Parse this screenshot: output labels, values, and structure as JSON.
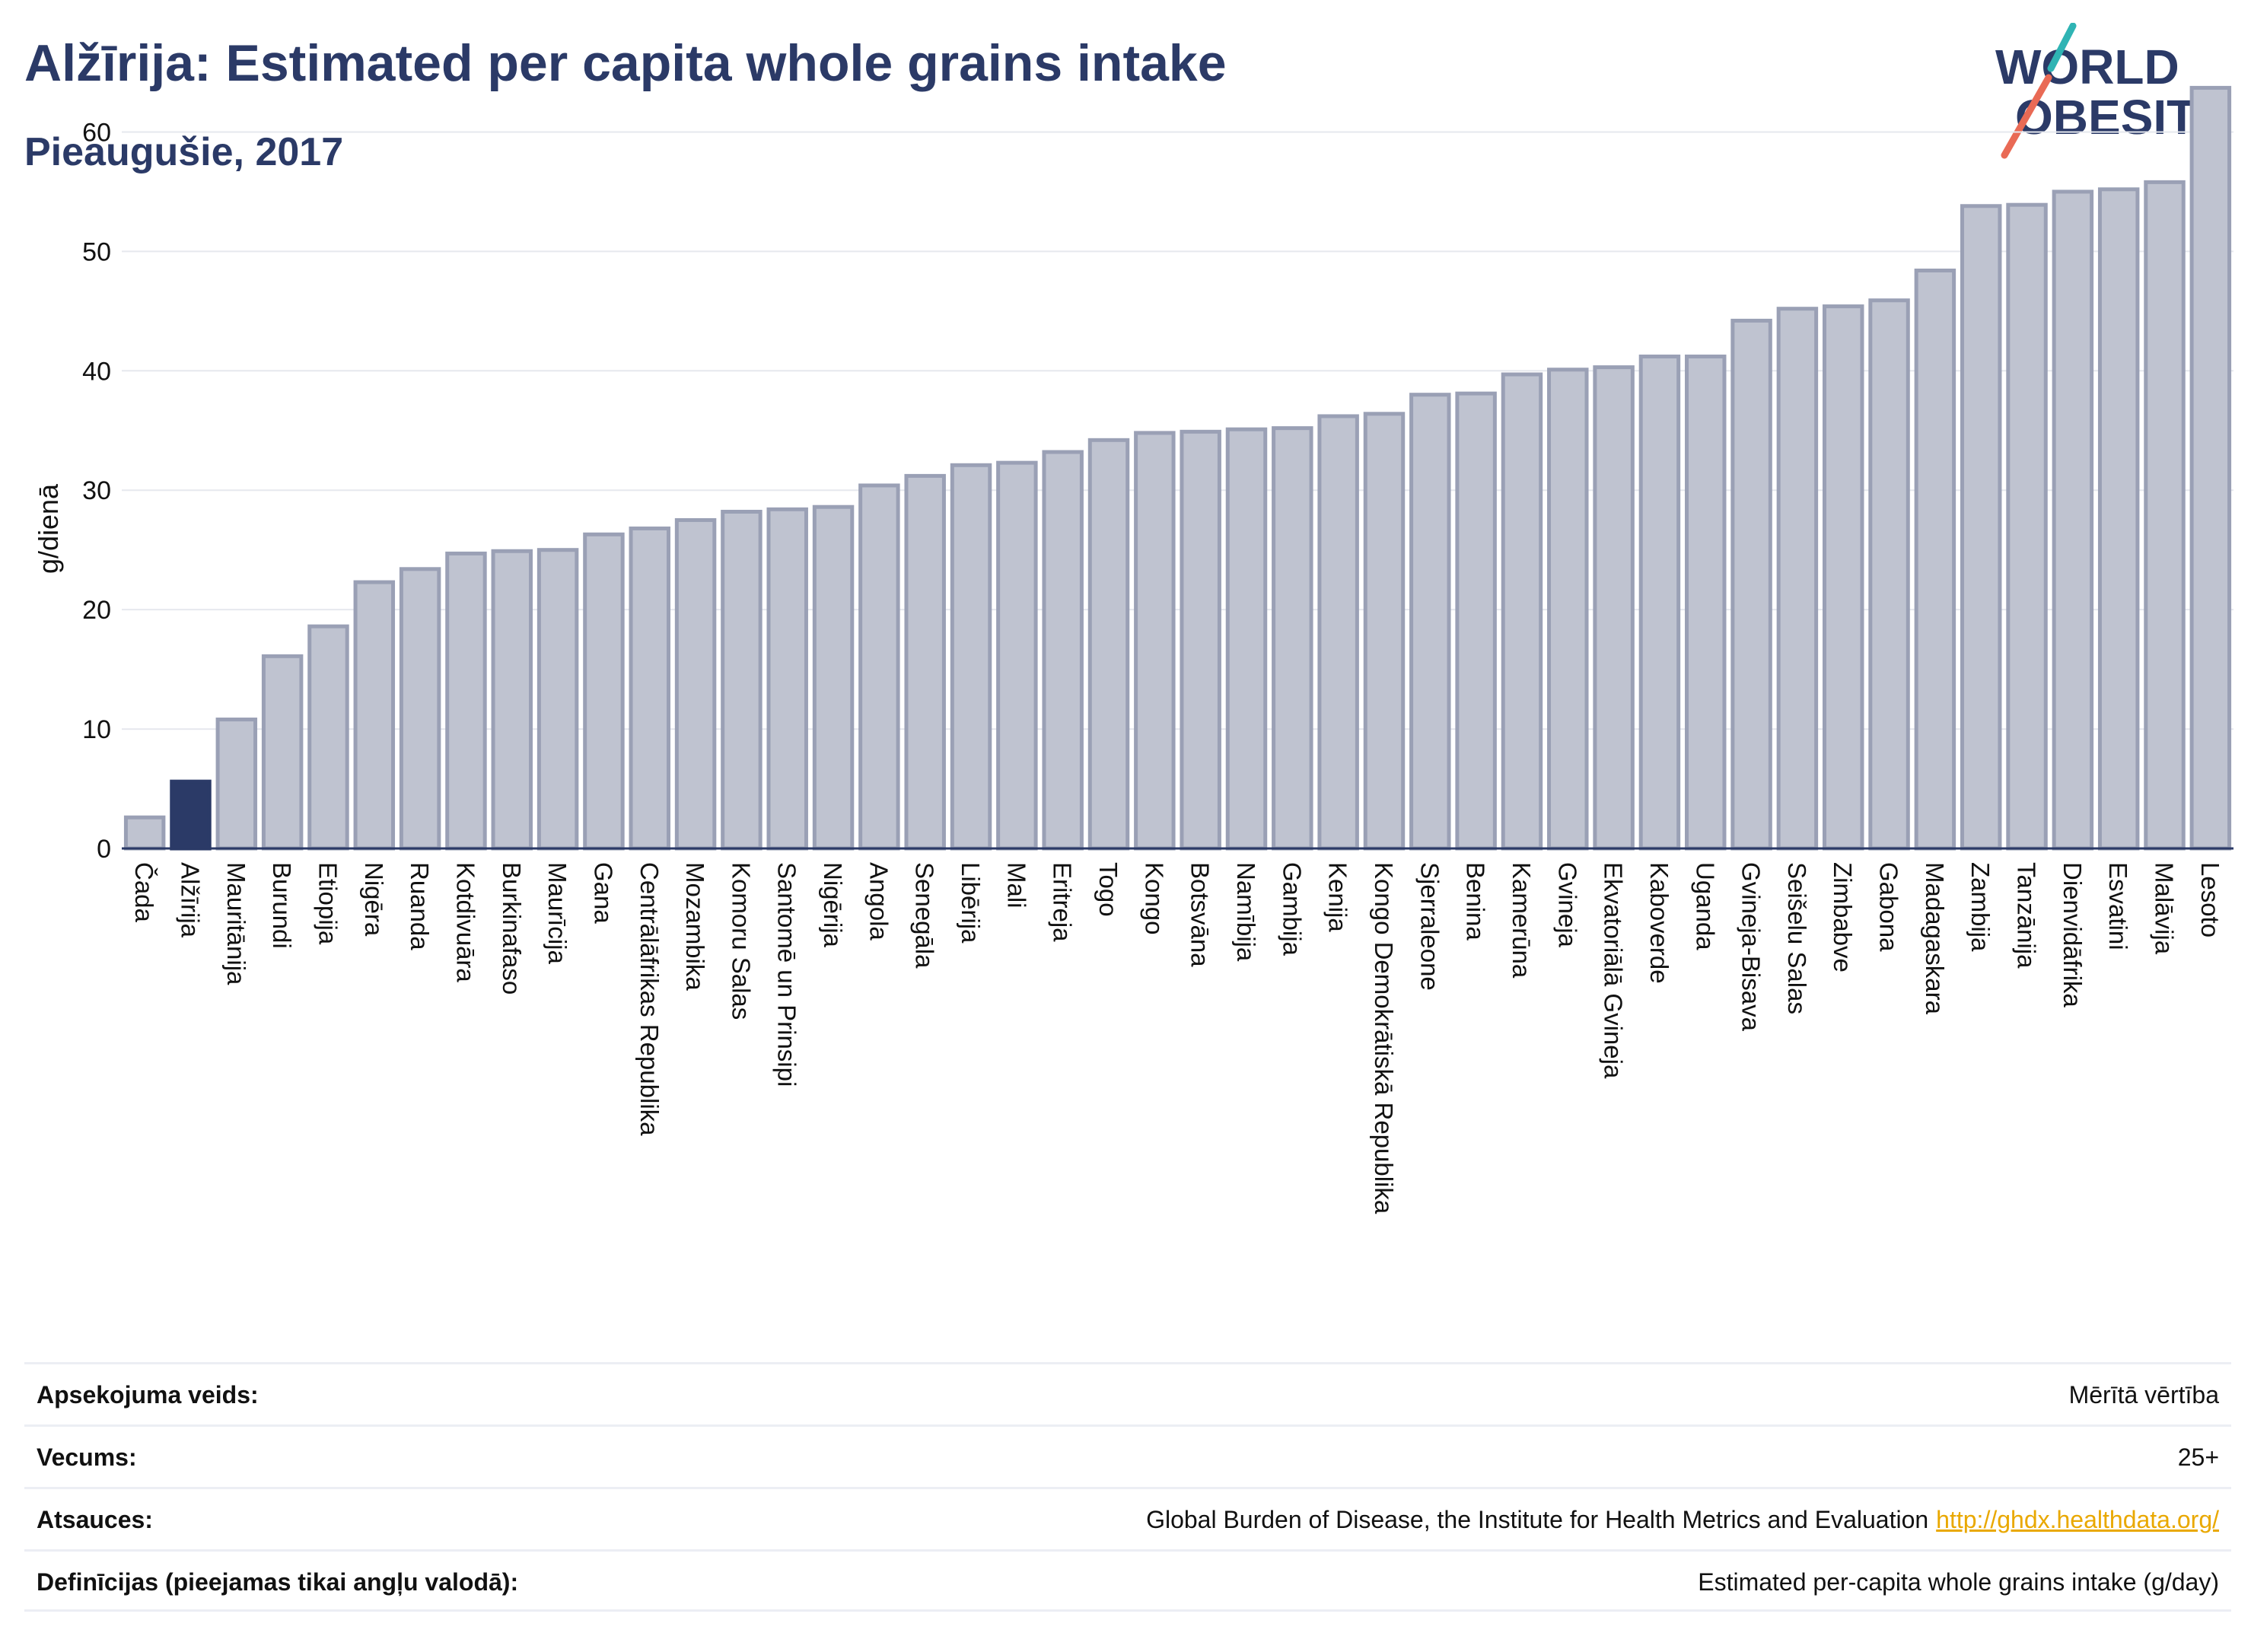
{
  "header": {
    "title": "Alžīrija: Estimated per capita whole grains intake",
    "subtitle": "Pieaugušie, 2017"
  },
  "logo": {
    "line1": "WORLD",
    "line2": "OBESITY"
  },
  "colors": {
    "title": "#2b3a67",
    "bar": "#bfc3d0",
    "bar_stroke": "#9aa0b5",
    "highlight": "#2b3a67",
    "logo_text": "#2b3a67",
    "logo_teal": "#2fb4b4",
    "logo_coral": "#e96a55",
    "link": "#e9a800"
  },
  "chart_data": {
    "type": "bar",
    "ylabel": "g/dienā",
    "ylim": [
      0,
      65
    ],
    "yticks": [
      0,
      10,
      20,
      30,
      40,
      50,
      60
    ],
    "highlight": "Alžīrija",
    "categories": [
      "Čada",
      "Alžīrija",
      "Mauritānija",
      "Burundi",
      "Etiopija",
      "Nigēra",
      "Ruanda",
      "Kotdivuāra",
      "Burkinafaso",
      "Maurīcija",
      "Gana",
      "Centrālāfrikas Republika",
      "Mozambika",
      "Komoru Salas",
      "Santomē un Prinsipi",
      "Nigērija",
      "Angola",
      "Senegāla",
      "Libērija",
      "Mali",
      "Eritreja",
      "Togo",
      "Kongo",
      "Botsvāna",
      "Namībija",
      "Gambija",
      "Kenija",
      "Kongo Demokrātiskā Republika",
      "Sjerraleone",
      "Benina",
      "Kamerūna",
      "Gvineja",
      "Ekvatoriālā Gvineja",
      "Kaboverde",
      "Uganda",
      "Gvineja-Bisava",
      "Seišelu Salas",
      "Zimbabve",
      "Gabona",
      "Madagaskara",
      "Zambija",
      "Tanzānija",
      "Dienvidāfrika",
      "Esvatini",
      "Malāvija",
      "Lesoto"
    ],
    "values": [
      2.6,
      5.6,
      10.8,
      16.1,
      18.6,
      22.3,
      23.4,
      24.7,
      24.9,
      25.0,
      26.3,
      26.8,
      27.5,
      28.2,
      28.4,
      28.6,
      30.4,
      31.2,
      32.1,
      32.3,
      33.2,
      34.2,
      34.8,
      34.9,
      35.1,
      35.2,
      36.2,
      36.4,
      38.0,
      38.1,
      39.7,
      40.1,
      40.3,
      41.2,
      41.2,
      44.2,
      45.2,
      45.4,
      45.9,
      48.4,
      53.8,
      53.9,
      55.0,
      55.2,
      55.8,
      63.7
    ]
  },
  "meta": {
    "rows": [
      {
        "label": "Apsekojuma veids:",
        "value": "Mērītā vērtība"
      },
      {
        "label": "Vecums:",
        "value": "25+"
      },
      {
        "label": "Atsauces:",
        "value": "Global Burden of Disease, the Institute for Health Metrics and Evaluation",
        "link": "http://ghdx.healthdata.org/"
      },
      {
        "label": "Definīcijas (pieejamas tikai angļu valodā):",
        "value": "Estimated per-capita whole grains intake (g/day)"
      }
    ]
  }
}
